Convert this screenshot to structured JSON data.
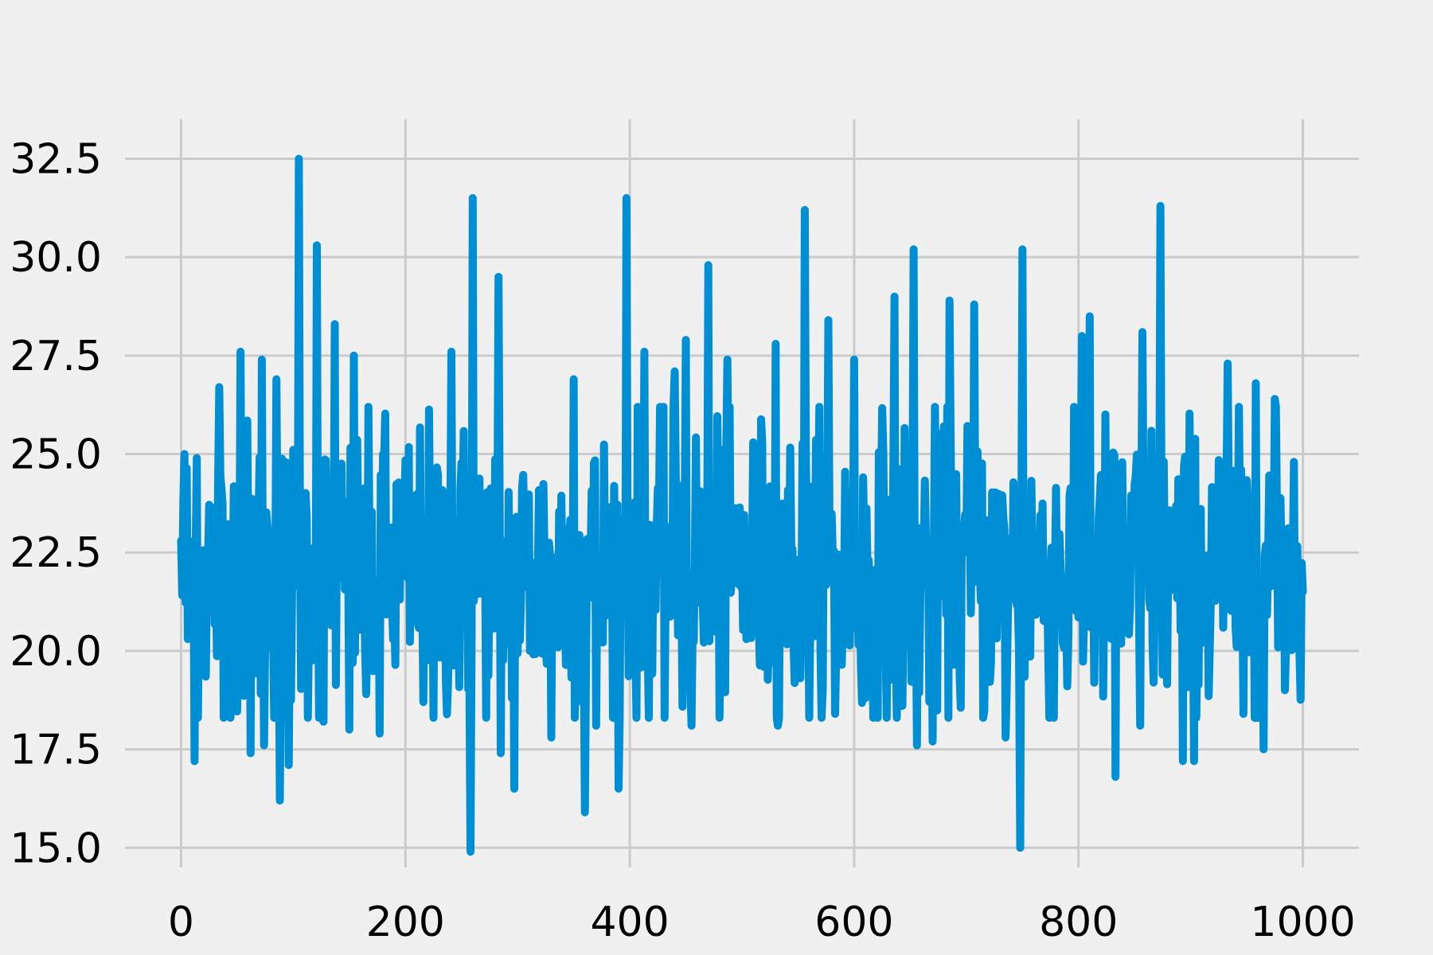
{
  "chart_data": {
    "type": "line",
    "title": "",
    "xlabel": "",
    "ylabel": "",
    "xlim": [
      -50,
      1050
    ],
    "ylim": [
      14.5,
      33.5
    ],
    "grid": true,
    "legend": "none",
    "x_ticks": [
      0,
      200,
      400,
      600,
      800,
      1000
    ],
    "x_tick_labels": [
      "0",
      "200",
      "400",
      "600",
      "800",
      "1000"
    ],
    "y_ticks": [
      15.0,
      17.5,
      20.0,
      22.5,
      25.0,
      27.5,
      30.0,
      32.5
    ],
    "y_tick_labels": [
      "15.0",
      "17.5",
      "20.0",
      "22.5",
      "25.0",
      "27.5",
      "30.0",
      "32.5"
    ],
    "colors": {
      "series": "#008fd5",
      "grid": "#cbcbcb",
      "background": "#f0f0f0"
    },
    "series": [
      {
        "x_start": 0,
        "x_step": 1,
        "num_points": 1001,
        "mean": 22.0,
        "values_sampled": [
          {
            "x": 0,
            "y": 22.8
          },
          {
            "x": 3,
            "y": 25.0
          },
          {
            "x": 6,
            "y": 20.3
          },
          {
            "x": 12,
            "y": 17.2
          },
          {
            "x": 14,
            "y": 24.9
          },
          {
            "x": 34,
            "y": 26.7
          },
          {
            "x": 38,
            "y": 18.3
          },
          {
            "x": 53,
            "y": 27.6
          },
          {
            "x": 62,
            "y": 17.4
          },
          {
            "x": 72,
            "y": 27.4
          },
          {
            "x": 74,
            "y": 17.6
          },
          {
            "x": 85,
            "y": 26.9
          },
          {
            "x": 88,
            "y": 16.2
          },
          {
            "x": 96,
            "y": 17.1
          },
          {
            "x": 105,
            "y": 32.5
          },
          {
            "x": 108,
            "y": 19.3
          },
          {
            "x": 121,
            "y": 30.3
          },
          {
            "x": 127,
            "y": 18.2
          },
          {
            "x": 137,
            "y": 28.3
          },
          {
            "x": 150,
            "y": 18.0
          },
          {
            "x": 154,
            "y": 27.5
          },
          {
            "x": 165,
            "y": 18.9
          },
          {
            "x": 177,
            "y": 17.9
          },
          {
            "x": 180,
            "y": 25.0
          },
          {
            "x": 225,
            "y": 18.3
          },
          {
            "x": 241,
            "y": 27.6
          },
          {
            "x": 258,
            "y": 14.9
          },
          {
            "x": 260,
            "y": 31.5
          },
          {
            "x": 283,
            "y": 29.5
          },
          {
            "x": 285,
            "y": 17.4
          },
          {
            "x": 297,
            "y": 16.5
          },
          {
            "x": 330,
            "y": 17.8
          },
          {
            "x": 350,
            "y": 26.9
          },
          {
            "x": 360,
            "y": 15.9
          },
          {
            "x": 370,
            "y": 18.1
          },
          {
            "x": 390,
            "y": 16.5
          },
          {
            "x": 397,
            "y": 31.5
          },
          {
            "x": 413,
            "y": 27.6
          },
          {
            "x": 440,
            "y": 27.1
          },
          {
            "x": 450,
            "y": 27.9
          },
          {
            "x": 455,
            "y": 18.1
          },
          {
            "x": 470,
            "y": 29.8
          },
          {
            "x": 487,
            "y": 27.4
          },
          {
            "x": 530,
            "y": 27.8
          },
          {
            "x": 532,
            "y": 18.1
          },
          {
            "x": 556,
            "y": 31.2
          },
          {
            "x": 577,
            "y": 28.4
          },
          {
            "x": 583,
            "y": 18.4
          },
          {
            "x": 600,
            "y": 27.4
          },
          {
            "x": 610,
            "y": 18.8
          },
          {
            "x": 636,
            "y": 29.0
          },
          {
            "x": 638,
            "y": 18.3
          },
          {
            "x": 653,
            "y": 30.2
          },
          {
            "x": 656,
            "y": 17.6
          },
          {
            "x": 670,
            "y": 17.7
          },
          {
            "x": 685,
            "y": 28.9
          },
          {
            "x": 707,
            "y": 28.8
          },
          {
            "x": 735,
            "y": 17.8
          },
          {
            "x": 748,
            "y": 15.0
          },
          {
            "x": 750,
            "y": 30.2
          },
          {
            "x": 790,
            "y": 19.1
          },
          {
            "x": 803,
            "y": 28.0
          },
          {
            "x": 810,
            "y": 28.5
          },
          {
            "x": 833,
            "y": 16.8
          },
          {
            "x": 855,
            "y": 18.1
          },
          {
            "x": 857,
            "y": 28.1
          },
          {
            "x": 873,
            "y": 31.3
          },
          {
            "x": 893,
            "y": 17.2
          },
          {
            "x": 903,
            "y": 17.2
          },
          {
            "x": 933,
            "y": 27.3
          },
          {
            "x": 947,
            "y": 18.4
          },
          {
            "x": 958,
            "y": 26.8
          },
          {
            "x": 965,
            "y": 17.5
          },
          {
            "x": 975,
            "y": 26.4
          },
          {
            "x": 992,
            "y": 24.8
          },
          {
            "x": 1000,
            "y": 21.5
          }
        ]
      }
    ]
  }
}
